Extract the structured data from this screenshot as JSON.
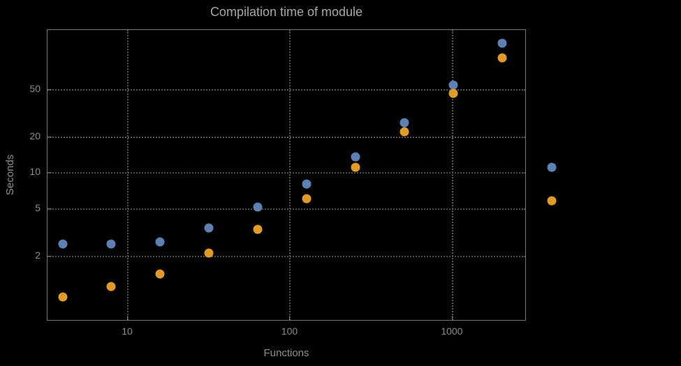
{
  "colors": {
    "background": "#000000",
    "frame": "#757575",
    "gridline": "#545454",
    "label_text": "#8d8d8d",
    "title_text": "#a6a6a6",
    "series_blue": "#5e81b5",
    "series_orange": "#e09c24"
  },
  "chart_data": {
    "type": "scatter",
    "title": "Compilation time of module",
    "xlabel": "Functions",
    "ylabel": "Seconds",
    "x_scale": "log",
    "y_scale": "log",
    "xlim": [
      3.2,
      2860
    ],
    "ylim": [
      0.57,
      158
    ],
    "grid": true,
    "x": [
      4,
      8,
      16,
      32,
      64,
      128,
      256,
      512,
      1024,
      2048
    ],
    "series": [
      {
        "name": "blue",
        "color": "#5e81b5",
        "values": [
          2.5,
          2.5,
          2.6,
          3.4,
          5.1,
          8,
          13.5,
          26,
          54,
          120
        ]
      },
      {
        "name": "orange",
        "color": "#e09c24",
        "values": [
          0.9,
          1.1,
          1.4,
          2.1,
          3.3,
          6,
          11,
          22,
          46,
          91
        ]
      }
    ],
    "x_ticks": [
      10,
      100,
      1000
    ],
    "x_tick_labels": [
      "10",
      "100",
      "1000"
    ],
    "y_ticks": [
      2,
      5,
      10,
      20,
      50
    ],
    "y_tick_labels": [
      "2",
      "5",
      "10",
      "20",
      "50"
    ],
    "legend": {
      "position": "right-outside",
      "markers": [
        {
          "series": "blue",
          "color": "#5e81b5"
        },
        {
          "series": "orange",
          "color": "#e09c24"
        }
      ]
    }
  }
}
